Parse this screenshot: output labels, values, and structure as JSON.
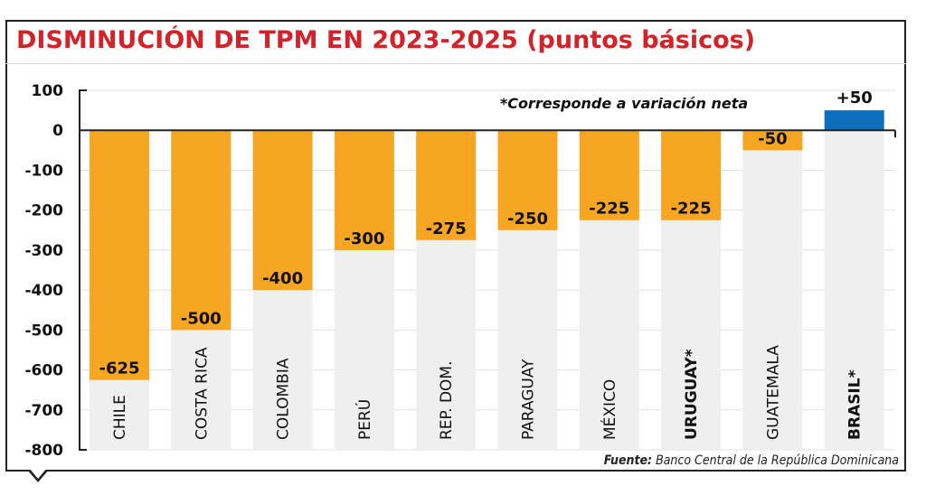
{
  "title": "DISMINUCIÓN DE TPM EN 2023-2025 (puntos básicos)",
  "note": "*Corresponde a variación neta",
  "source": {
    "label": "Fuente:",
    "text": "Banco Central de la República Dominicana"
  },
  "colors": {
    "negative": "#f6a623",
    "positive": "#0d6ebc",
    "track": "#efefef",
    "title": "#d2232a"
  },
  "chart_data": {
    "type": "bar",
    "title": "DISMINUCIÓN DE TPM EN 2023-2025 (puntos básicos)",
    "categories": [
      "CHILE",
      "COSTA RICA",
      "COLOMBIA",
      "PERÚ",
      "REP. DOM.",
      "PARAGUAY",
      "MÉXICO",
      "URUGUAY*",
      "GUATEMALA",
      "BRASIL*"
    ],
    "bold_categories": [
      "URUGUAY*",
      "BRASIL*"
    ],
    "values": [
      -625,
      -500,
      -400,
      -300,
      -275,
      -250,
      -225,
      -225,
      -50,
      50
    ],
    "value_labels": [
      "-625",
      "-500",
      "-400",
      "-300",
      "-275",
      "-250",
      "-225",
      "-225",
      "-50",
      "+50"
    ],
    "ylim": [
      -800,
      100
    ],
    "yticks": [
      100,
      0,
      -100,
      -200,
      -300,
      -400,
      -500,
      -600,
      -700,
      -800
    ],
    "ytick_labels": [
      "100",
      "0",
      "-100",
      "-200",
      "-300",
      "-400",
      "-500",
      "-600",
      "-700",
      "-800"
    ],
    "grid": true,
    "xlabel": "",
    "ylabel": ""
  }
}
